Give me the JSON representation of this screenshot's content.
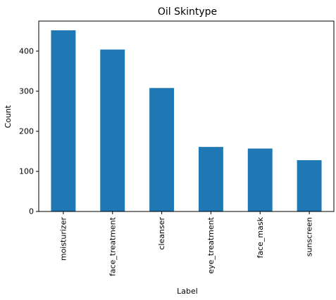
{
  "chart_data": {
    "type": "bar",
    "title": "Oil Skintype",
    "xlabel": "Label",
    "ylabel": "Count",
    "categories": [
      "moisturizer",
      "face_treatment",
      "cleanser",
      "eye_treatment",
      "face_mask",
      "sunscreen"
    ],
    "values": [
      452,
      404,
      308,
      161,
      157,
      128
    ],
    "ylim": [
      0,
      475
    ],
    "yticks": [
      0,
      100,
      200,
      300,
      400
    ],
    "bar_color": "#1f77b4",
    "grid": false,
    "legend": false
  }
}
